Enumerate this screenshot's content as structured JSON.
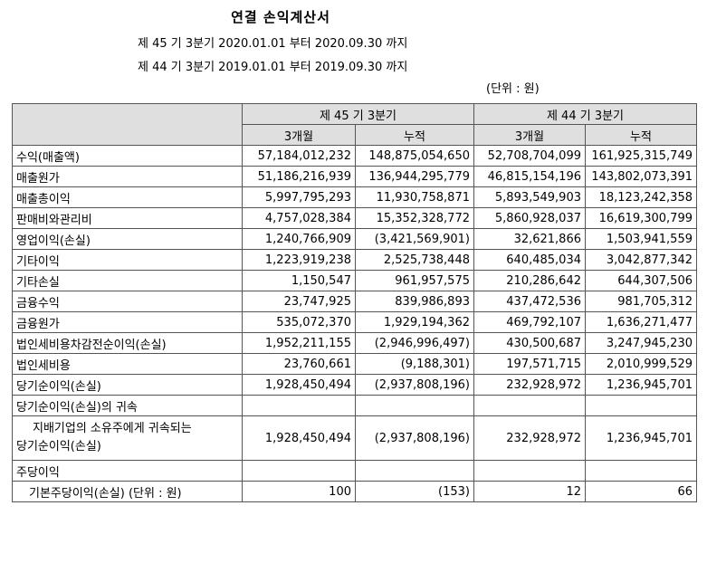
{
  "title": "연결 손익계산서",
  "period_current": "제 45 기 3분기 2020.01.01 부터 2020.09.30 까지",
  "period_prior": "제 44 기 3분기 2019.01.01 부터 2019.09.30 까지",
  "unit": "(단위 : 원)",
  "header": {
    "group_current": "제 45 기 3분기",
    "group_prior": "제 44 기 3분기",
    "sub_3m_a": "3개월",
    "sub_cum_a": "누적",
    "sub_3m_b": "3개월",
    "sub_cum_b": "누적"
  },
  "rows": [
    {
      "label": "수익(매출액)",
      "v": [
        "57,184,012,232",
        "148,875,054,650",
        "52,708,704,099",
        "161,925,315,749"
      ]
    },
    {
      "label": "매출원가",
      "v": [
        "51,186,216,939",
        "136,944,295,779",
        "46,815,154,196",
        "143,802,073,391"
      ]
    },
    {
      "label": "매출총이익",
      "v": [
        "5,997,795,293",
        "11,930,758,871",
        "5,893,549,903",
        "18,123,242,358"
      ]
    },
    {
      "label": "판매비와관리비",
      "v": [
        "4,757,028,384",
        "15,352,328,772",
        "5,860,928,037",
        "16,619,300,799"
      ]
    },
    {
      "label": "영업이익(손실)",
      "v": [
        "1,240,766,909",
        "(3,421,569,901)",
        "32,621,866",
        "1,503,941,559"
      ]
    },
    {
      "label": "기타이익",
      "v": [
        "1,223,919,238",
        "2,525,738,448",
        "640,485,034",
        "3,042,877,342"
      ]
    },
    {
      "label": "기타손실",
      "v": [
        "1,150,547",
        "961,957,575",
        "210,286,642",
        "644,307,506"
      ]
    },
    {
      "label": "금융수익",
      "v": [
        "23,747,925",
        "839,986,893",
        "437,472,536",
        "981,705,312"
      ]
    },
    {
      "label": "금융원가",
      "v": [
        "535,072,370",
        "1,929,194,362",
        "469,792,107",
        "1,636,271,477"
      ]
    },
    {
      "label": "법인세비용차감전순이익(손실)",
      "v": [
        "1,952,211,155",
        "(2,946,996,497)",
        "430,500,687",
        "3,247,945,230"
      ]
    },
    {
      "label": "법인세비용",
      "v": [
        "23,760,661",
        "(9,188,301)",
        "197,571,715",
        "2,010,999,529"
      ]
    },
    {
      "label": "당기순이익(손실)",
      "v": [
        "1,928,450,494",
        "(2,937,808,196)",
        "232,928,972",
        "1,236,945,701"
      ]
    },
    {
      "label": "당기순이익(손실)의 귀속",
      "v": [
        "",
        "",
        "",
        ""
      ]
    }
  ],
  "attrib_row": {
    "label_line1": "지배기업의 소유주에게 귀속되는",
    "label_line2": "당기순이익(손실)",
    "v": [
      "1,928,450,494",
      "(2,937,808,196)",
      "232,928,972",
      "1,236,945,701"
    ]
  },
  "eps_header": {
    "label": "주당이익"
  },
  "eps_row": {
    "label": "기본주당이익(손실) (단위 : 원)",
    "v": [
      "100",
      "(153)",
      "12",
      "66"
    ]
  }
}
